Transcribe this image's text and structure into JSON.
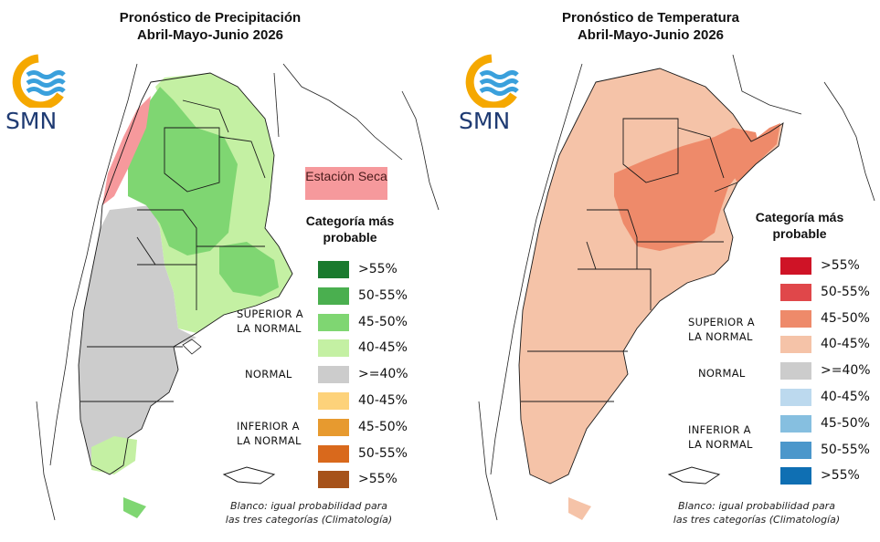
{
  "precip": {
    "title_line1": "Pronóstico de Precipitación",
    "title_line2": "Abril-Mayo-Junio 2026",
    "dry_season": "Estación Seca",
    "legend_title_line1": "Categoría más",
    "legend_title_line2": "probable",
    "legend": [
      {
        "label": ">55%",
        "color": "#1a7a2e"
      },
      {
        "label": "50-55%",
        "color": "#4aaf4f"
      },
      {
        "label": "45-50%",
        "color": "#7fd672"
      },
      {
        "label": "40-45%",
        "color": "#c4f0a3"
      },
      {
        "label": ">=40%",
        "color": "#cccccc"
      },
      {
        "label": "40-45%",
        "color": "#fdd27a"
      },
      {
        "label": "45-50%",
        "color": "#e79a2f"
      },
      {
        "label": "50-55%",
        "color": "#d9691c"
      },
      {
        "label": ">55%",
        "color": "#a6521a"
      }
    ],
    "superior_line1": "SUPERIOR A",
    "superior_line2": "LA NORMAL",
    "normal": "NORMAL",
    "inferior_line1": "INFERIOR A",
    "inferior_line2": "LA NORMAL",
    "footnote_line1": "Blanco: igual probabilidad para",
    "footnote_line2": "las tres categorías (Climatología)"
  },
  "temp": {
    "title_line1": "Pronóstico de Temperatura",
    "title_line2": "Abril-Mayo-Junio 2026",
    "legend_title_line1": "Categoría más",
    "legend_title_line2": "probable",
    "legend": [
      {
        "label": ">55%",
        "color": "#cf1326"
      },
      {
        "label": "50-55%",
        "color": "#e0474a"
      },
      {
        "label": "45-50%",
        "color": "#ee8a6a"
      },
      {
        "label": "40-45%",
        "color": "#f5c3a8"
      },
      {
        "label": ">=40%",
        "color": "#cccccc"
      },
      {
        "label": "40-45%",
        "color": "#bcd9ee"
      },
      {
        "label": "45-50%",
        "color": "#86bfe0"
      },
      {
        "label": "50-55%",
        "color": "#4b97cb"
      },
      {
        "label": ">55%",
        "color": "#0f6fb3"
      }
    ],
    "superior_line1": "SUPERIOR A",
    "superior_line2": "LA NORMAL",
    "normal": "NORMAL",
    "inferior_line1": "INFERIOR A",
    "inferior_line2": "LA NORMAL",
    "footnote_line1": "Blanco: igual probabilidad para",
    "footnote_line2": "las tres categorías (Climatología)"
  },
  "logo": {
    "text": "SMN",
    "ring_color": "#f5a800",
    "wave_color": "#3aa0dc",
    "text_color": "#1f3b73"
  },
  "map_colors": {
    "precip_normal": "#cccccc",
    "precip_above_40": "#c4f0a3",
    "precip_above_45": "#7fd672",
    "precip_dry": "#f6999c",
    "temp_40": "#f5c3a8",
    "temp_45": "#ee8a6a",
    "border": "#1a1a1a"
  }
}
